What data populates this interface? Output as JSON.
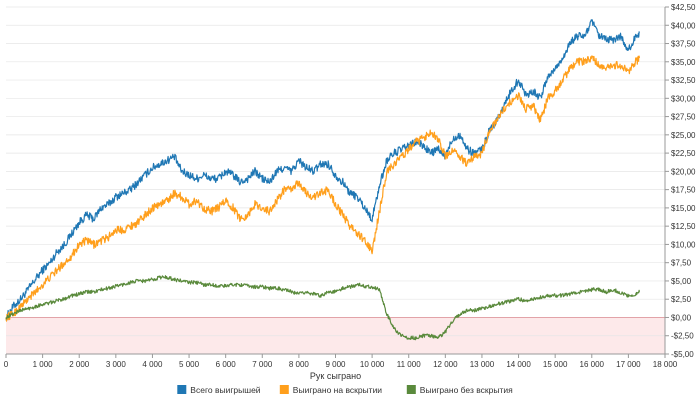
{
  "chart_data": {
    "type": "line",
    "xlabel": "Рук сыграно",
    "ylabel": "",
    "xlim": [
      0,
      18000
    ],
    "ylim": [
      -5,
      42.5
    ],
    "x_ticks": [
      0,
      1000,
      2000,
      3000,
      4000,
      5000,
      6000,
      7000,
      8000,
      9000,
      10000,
      11000,
      12000,
      13000,
      14000,
      15000,
      16000,
      17000,
      18000
    ],
    "x_tick_labels": [
      "0",
      "1 000",
      "2 000",
      "3 000",
      "4 000",
      "5 000",
      "6 000",
      "7 000",
      "8 000",
      "9 000",
      "10 000",
      "11 000",
      "12 000",
      "13 000",
      "14 000",
      "15 000",
      "16 000",
      "17 000",
      "18 000"
    ],
    "y_ticks": [
      -5,
      -2.5,
      0,
      2.5,
      5,
      7.5,
      10,
      12.5,
      15,
      17.5,
      20,
      22.5,
      25,
      27.5,
      30,
      32.5,
      35,
      37.5,
      40,
      42.5
    ],
    "y_tick_labels": [
      "-$5,00",
      "-$2,50",
      "$0,00",
      "$2,50",
      "$5,00",
      "$7,50",
      "$10,00",
      "$12,50",
      "$15,00",
      "$17,50",
      "$20,00",
      "$22,50",
      "$25,00",
      "$27,50",
      "$30,00",
      "$32,50",
      "$35,00",
      "$37,50",
      "$40,00",
      "$42,50"
    ],
    "y_axis_side": "right",
    "grid": "horizontal",
    "negative_region_shaded": true,
    "legend_position": "bottom",
    "series": [
      {
        "name": "Всего выигрышей",
        "color": "#1f77b4",
        "x": [
          0,
          200,
          400,
          600,
          800,
          1000,
          1200,
          1400,
          1600,
          1800,
          2000,
          2200,
          2400,
          2600,
          2800,
          3000,
          3200,
          3400,
          3600,
          3800,
          4000,
          4200,
          4400,
          4600,
          4800,
          5000,
          5200,
          5400,
          5600,
          5800,
          6000,
          6200,
          6400,
          6600,
          6800,
          7000,
          7200,
          7400,
          7600,
          7800,
          8000,
          8200,
          8400,
          8600,
          8800,
          9000,
          9200,
          9400,
          9600,
          9800,
          10000,
          10200,
          10400,
          10600,
          10800,
          11000,
          11200,
          11400,
          11600,
          11800,
          12000,
          12200,
          12400,
          12600,
          12800,
          13000,
          13200,
          13400,
          13600,
          13800,
          14000,
          14200,
          14400,
          14600,
          14800,
          15000,
          15200,
          15400,
          15600,
          15800,
          16000,
          16200,
          16400,
          16600,
          16800,
          17000,
          17200,
          17300
        ],
        "values": [
          0,
          1.5,
          2.5,
          3.8,
          5.2,
          6.5,
          7.5,
          9,
          10,
          11.5,
          13,
          14,
          13.5,
          15,
          15.5,
          16.5,
          17,
          17.5,
          18.5,
          19.5,
          20.5,
          21,
          21.5,
          22,
          20,
          19.5,
          19,
          19.5,
          19,
          19,
          20,
          19.5,
          18.5,
          19,
          20,
          19,
          18.5,
          20,
          20.5,
          20,
          21.5,
          20.5,
          20,
          21,
          21,
          19.5,
          18.5,
          17,
          16.5,
          15,
          13.5,
          18,
          21.5,
          22.5,
          23,
          23.5,
          24,
          23.5,
          22.5,
          23,
          22,
          24.5,
          25,
          23,
          22.5,
          23,
          25.5,
          27,
          29,
          31,
          32.5,
          30.5,
          31,
          30,
          33,
          34,
          35.5,
          37.5,
          38.5,
          38.5,
          40.5,
          38.5,
          38,
          38,
          38.5,
          36.5,
          38.5,
          39
        ]
      },
      {
        "name": "Выиграно на вскрытии",
        "color": "#ff9f1c",
        "x": [
          0,
          200,
          400,
          600,
          800,
          1000,
          1200,
          1400,
          1600,
          1800,
          2000,
          2200,
          2400,
          2600,
          2800,
          3000,
          3200,
          3400,
          3600,
          3800,
          4000,
          4200,
          4400,
          4600,
          4800,
          5000,
          5200,
          5400,
          5600,
          5800,
          6000,
          6200,
          6400,
          6600,
          6800,
          7000,
          7200,
          7400,
          7600,
          7800,
          8000,
          8200,
          8400,
          8600,
          8800,
          9000,
          9200,
          9400,
          9600,
          9800,
          10000,
          10200,
          10400,
          10600,
          10800,
          11000,
          11200,
          11400,
          11600,
          11800,
          12000,
          12200,
          12400,
          12600,
          12800,
          13000,
          13200,
          13400,
          13600,
          13800,
          14000,
          14200,
          14400,
          14600,
          14800,
          15000,
          15200,
          15400,
          15600,
          15800,
          16000,
          16200,
          16400,
          16600,
          16800,
          17000,
          17200,
          17300
        ],
        "values": [
          0,
          0.5,
          1.5,
          2.5,
          3.5,
          4.5,
          5.5,
          6.5,
          7.5,
          8.5,
          10,
          10.5,
          10,
          10.5,
          11,
          12,
          12,
          12.5,
          13,
          14,
          15,
          15.5,
          16,
          17,
          16.5,
          15.5,
          16,
          15,
          14.5,
          15,
          16,
          15,
          13.5,
          14,
          15.5,
          15,
          14.5,
          16,
          17.5,
          17.5,
          18.5,
          17,
          16.5,
          17,
          17.5,
          15.5,
          14,
          12.5,
          11.5,
          10.5,
          9,
          14.5,
          20,
          21,
          22,
          23,
          24,
          24.5,
          25.5,
          24.5,
          22,
          23,
          22,
          21,
          22,
          22.5,
          25.5,
          27,
          28.5,
          29.5,
          30.5,
          28.5,
          29,
          27,
          30,
          31,
          32.5,
          34,
          35,
          35,
          35.5,
          34.5,
          34,
          34.5,
          34.5,
          33.5,
          35,
          35.5
        ]
      },
      {
        "name": "Выиграно без вскрытия",
        "color": "#5a8a3c",
        "x": [
          0,
          200,
          400,
          600,
          800,
          1000,
          1200,
          1400,
          1600,
          1800,
          2000,
          2200,
          2400,
          2600,
          2800,
          3000,
          3200,
          3400,
          3600,
          3800,
          4000,
          4200,
          4400,
          4600,
          4800,
          5000,
          5200,
          5400,
          5600,
          5800,
          6000,
          6200,
          6400,
          6600,
          6800,
          7000,
          7200,
          7400,
          7600,
          7800,
          8000,
          8200,
          8400,
          8600,
          8800,
          9000,
          9200,
          9400,
          9600,
          9800,
          10000,
          10200,
          10400,
          10600,
          10800,
          11000,
          11200,
          11400,
          11600,
          11800,
          12000,
          12200,
          12400,
          12600,
          12800,
          13000,
          13200,
          13400,
          13600,
          13800,
          14000,
          14200,
          14400,
          14600,
          14800,
          15000,
          15200,
          15400,
          15600,
          15800,
          16000,
          16200,
          16400,
          16600,
          16800,
          17000,
          17200,
          17300
        ],
        "values": [
          0,
          0.5,
          1,
          1.2,
          1.5,
          1.8,
          2,
          2.3,
          2.6,
          3,
          3.2,
          3.5,
          3.5,
          3.8,
          4,
          4.3,
          4.5,
          4.8,
          5,
          5,
          5.2,
          5.5,
          5.5,
          5.2,
          5,
          4.8,
          4.8,
          4.5,
          4.5,
          4.3,
          4.3,
          4.5,
          4.5,
          4.3,
          4.2,
          4.2,
          4,
          4,
          3.8,
          3.5,
          3.2,
          3.5,
          3.2,
          3,
          3.5,
          3.5,
          4,
          4.2,
          4.5,
          4.3,
          4.2,
          3.8,
          0.5,
          -1.5,
          -2.5,
          -2.8,
          -2.8,
          -2.5,
          -2.5,
          -2.8,
          -2,
          -0.5,
          0.5,
          1,
          1,
          1.2,
          1.5,
          1.8,
          2,
          2.3,
          2.5,
          2.3,
          2.5,
          2.8,
          3,
          3,
          3,
          3.2,
          3.5,
          3.5,
          3.8,
          3.8,
          3.5,
          3.8,
          3.3,
          3,
          3.2,
          3.5
        ]
      }
    ]
  }
}
